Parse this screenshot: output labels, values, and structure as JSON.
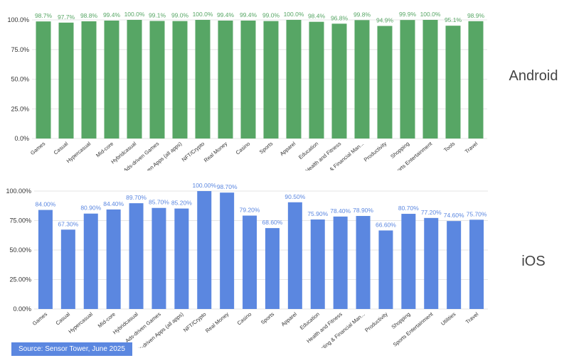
{
  "source": "Source: Sensor Tower, June 2025",
  "chart_data": [
    {
      "type": "bar",
      "platform_label": "Android",
      "color": "#57a665",
      "ylim": [
        0,
        100
      ],
      "yticks": [
        "0.0%",
        "25.0%",
        "50.0%",
        "75.0%",
        "100.0%"
      ],
      "categories": [
        "Games",
        "Casual",
        "Hypercasual",
        "Mid-core",
        "Hybridcasual",
        "Ads-driven Games",
        "Ads-driven Apps (all apps)",
        "NFT/Crypto",
        "Real Money",
        "Casino",
        "Sports",
        "Apparel",
        "Education",
        "Health and Fitness",
        "Investing & Financial Man...",
        "Productivity",
        "Shopping",
        "Sports Entertainment",
        "Tools",
        "Travel"
      ],
      "values": [
        98.7,
        97.7,
        98.8,
        99.4,
        100.0,
        99.1,
        99.0,
        100.0,
        99.4,
        99.4,
        99.0,
        100.0,
        98.4,
        96.8,
        99.8,
        94.9,
        99.9,
        100.0,
        95.1,
        98.9
      ],
      "value_labels": [
        "98.7%",
        "97.7%",
        "98.8%",
        "99.4%",
        "100.0%",
        "99.1%",
        "99.0%",
        "100.0%",
        "99.4%",
        "99.4%",
        "99.0%",
        "100.0%",
        "98.4%",
        "96.8%",
        "99.8%",
        "94.9%",
        "99.9%",
        "100.0%",
        "95.1%",
        "98.9%"
      ]
    },
    {
      "type": "bar",
      "platform_label": "iOS",
      "color": "#5b87e0",
      "ylim": [
        0,
        100
      ],
      "yticks": [
        "0.00%",
        "25.00%",
        "50.00%",
        "75.00%",
        "100.00%"
      ],
      "categories": [
        "Games",
        "Casual",
        "Hypercasual",
        "Mid-core",
        "Hybridcasual",
        "Ads-driven Games",
        "Ads-driven Apps (all apps)",
        "NFT/Crypto",
        "Real Money",
        "Casino",
        "Sports",
        "Apparel",
        "Education",
        "Health and Fitness",
        "Investing & Financial Man...",
        "Productivity",
        "Shopping",
        "Sports Entertainment",
        "Utilities",
        "Travel"
      ],
      "values": [
        84.0,
        67.3,
        80.9,
        84.4,
        89.7,
        85.7,
        85.2,
        100.0,
        98.7,
        79.2,
        68.6,
        90.5,
        75.9,
        78.4,
        78.9,
        66.6,
        80.7,
        77.2,
        74.6,
        75.7
      ],
      "value_labels": [
        "84.00%",
        "67.30%",
        "80.90%",
        "84.40%",
        "89.70%",
        "85.70%",
        "85.20%",
        "100.00%",
        "98.70%",
        "79.20%",
        "68.60%",
        "90.50%",
        "75.90%",
        "78.40%",
        "78.90%",
        "66.60%",
        "80.70%",
        "77.20%",
        "74.60%",
        "75.70%"
      ]
    }
  ]
}
